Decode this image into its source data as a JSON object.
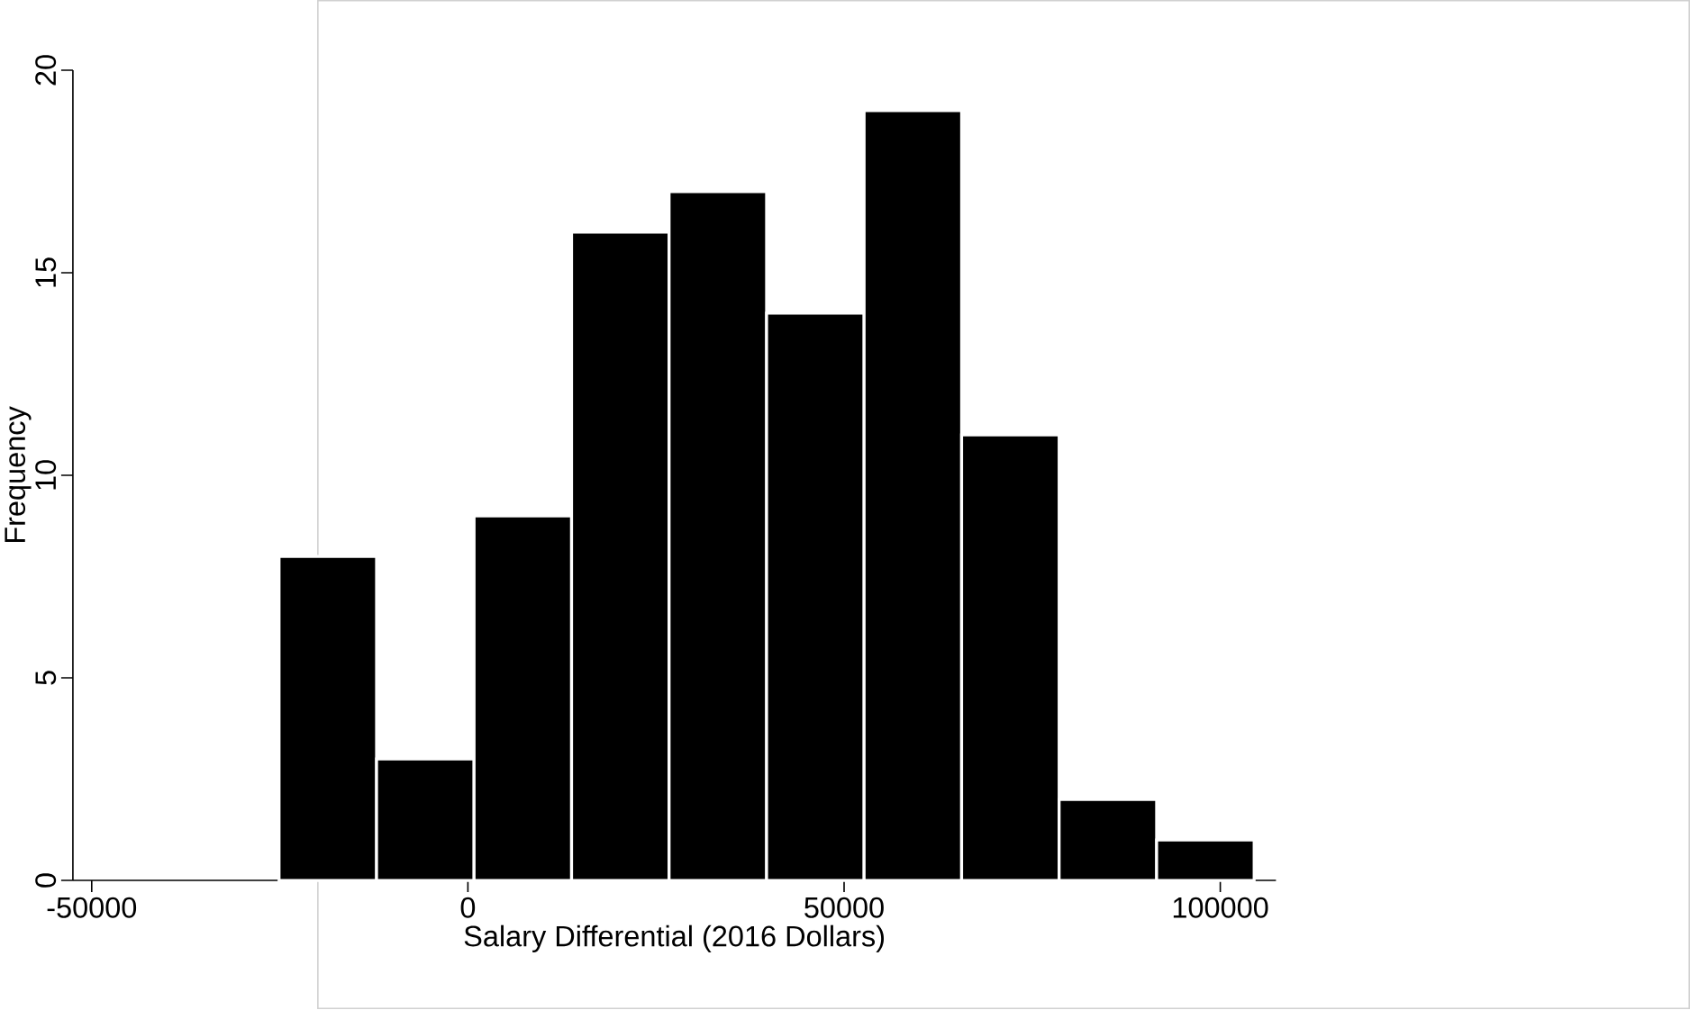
{
  "chart_data": {
    "type": "histogram",
    "xlabel": "Salary Differential (2016 Dollars)",
    "ylabel": "Frequency",
    "bins": [
      -25100,
      -12140,
      820,
      13780,
      26740,
      39700,
      52660,
      65620,
      78580,
      91540,
      104500
    ],
    "values": [
      8,
      3,
      9,
      16,
      17,
      14,
      19,
      11,
      2,
      1
    ],
    "color": "#000000",
    "xlim": [
      -52500,
      107400
    ],
    "ylim": [
      0,
      20
    ],
    "xticks": [
      -50000,
      0,
      50000,
      100000
    ],
    "yticks": [
      0,
      5,
      10,
      15,
      20
    ],
    "grid": false
  }
}
